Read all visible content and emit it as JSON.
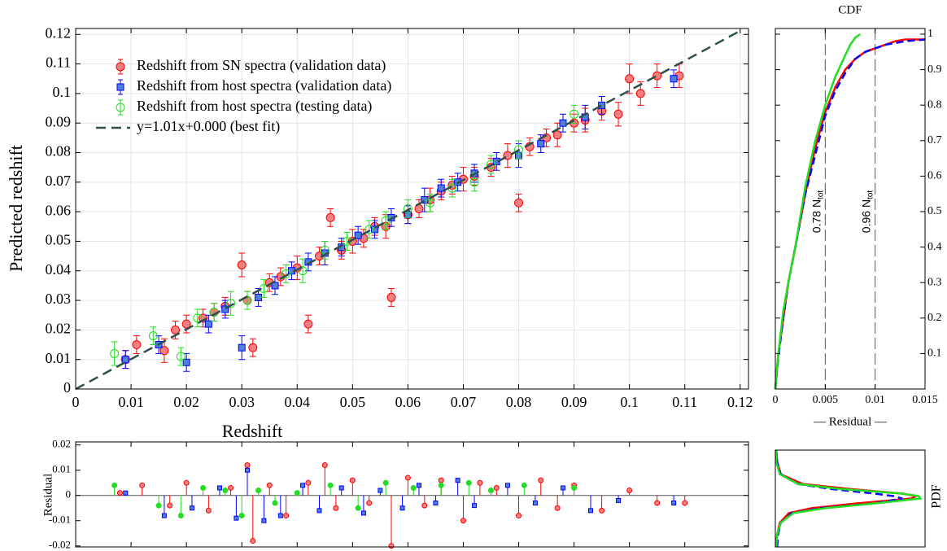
{
  "chart_data": [
    {
      "type": "scatter",
      "xlabel": "Redshift",
      "ylabel": "Predicted redshift",
      "xlim": [
        0,
        0.1215
      ],
      "ylim": [
        0,
        0.122
      ],
      "xticks": [
        0,
        0.01,
        0.02,
        0.03,
        0.04,
        0.05,
        0.06,
        0.07,
        0.08,
        0.09,
        0.1,
        0.11,
        0.12
      ],
      "yticks": [
        0,
        0.01,
        0.02,
        0.03,
        0.04,
        0.05,
        0.06,
        0.07,
        0.08,
        0.09,
        0.1,
        0.11,
        0.12
      ],
      "grid": true,
      "legend": "upper left",
      "series": [
        {
          "name": "Redshift from SN spectra (validation data)",
          "color": "#ff0000",
          "fill": "#f08080",
          "marker": "circle",
          "x": [
            0.009,
            0.011,
            0.016,
            0.018,
            0.02,
            0.023,
            0.025,
            0.027,
            0.03,
            0.031,
            0.032,
            0.035,
            0.037,
            0.04,
            0.042,
            0.044,
            0.046,
            0.048,
            0.05,
            0.052,
            0.054,
            0.056,
            0.057,
            0.06,
            0.062,
            0.064,
            0.066,
            0.068,
            0.07,
            0.072,
            0.075,
            0.078,
            0.08,
            0.082,
            0.085,
            0.087,
            0.09,
            0.092,
            0.095,
            0.098,
            0.1,
            0.102,
            0.105,
            0.109
          ],
          "values": [
            0.01,
            0.015,
            0.013,
            0.02,
            0.022,
            0.024,
            0.026,
            0.028,
            0.042,
            0.03,
            0.014,
            0.036,
            0.038,
            0.041,
            0.022,
            0.045,
            0.058,
            0.047,
            0.05,
            0.051,
            0.055,
            0.055,
            0.031,
            0.059,
            0.061,
            0.064,
            0.067,
            0.069,
            0.071,
            0.072,
            0.075,
            0.079,
            0.063,
            0.082,
            0.085,
            0.086,
            0.09,
            0.091,
            0.094,
            0.093,
            0.105,
            0.1,
            0.106,
            0.106
          ],
          "errors": [
            0.003,
            0.003,
            0.004,
            0.003,
            0.003,
            0.003,
            0.003,
            0.003,
            0.004,
            0.003,
            0.003,
            0.003,
            0.003,
            0.004,
            0.003,
            0.003,
            0.003,
            0.003,
            0.004,
            0.003,
            0.003,
            0.004,
            0.003,
            0.003,
            0.003,
            0.004,
            0.003,
            0.003,
            0.004,
            0.003,
            0.003,
            0.004,
            0.003,
            0.003,
            0.003,
            0.004,
            0.003,
            0.004,
            0.003,
            0.004,
            0.005,
            0.004,
            0.004,
            0.004
          ]
        },
        {
          "name": "Redshift from host spectra (validation data)",
          "color": "#0000ff",
          "fill": "#4f7fd6",
          "marker": "square",
          "x": [
            0.009,
            0.015,
            0.02,
            0.024,
            0.027,
            0.03,
            0.033,
            0.036,
            0.039,
            0.042,
            0.045,
            0.048,
            0.051,
            0.054,
            0.057,
            0.06,
            0.063,
            0.066,
            0.069,
            0.072,
            0.076,
            0.08,
            0.084,
            0.088,
            0.092,
            0.095,
            0.108
          ],
          "values": [
            0.01,
            0.015,
            0.009,
            0.022,
            0.027,
            0.014,
            0.031,
            0.035,
            0.04,
            0.043,
            0.046,
            0.048,
            0.052,
            0.054,
            0.058,
            0.059,
            0.064,
            0.068,
            0.07,
            0.073,
            0.077,
            0.079,
            0.083,
            0.09,
            0.092,
            0.096,
            0.105
          ],
          "errors": [
            0.003,
            0.003,
            0.003,
            0.003,
            0.003,
            0.004,
            0.003,
            0.003,
            0.003,
            0.003,
            0.004,
            0.003,
            0.003,
            0.003,
            0.003,
            0.003,
            0.004,
            0.003,
            0.003,
            0.003,
            0.003,
            0.004,
            0.003,
            0.003,
            0.004,
            0.003,
            0.003
          ]
        },
        {
          "name": "Redshift from host spectra (testing data)",
          "color": "#22dd22",
          "fill": "none",
          "marker": "open-circle",
          "x": [
            0.007,
            0.014,
            0.019,
            0.022,
            0.025,
            0.028,
            0.031,
            0.034,
            0.038,
            0.041,
            0.045,
            0.049,
            0.053,
            0.056,
            0.06,
            0.064,
            0.068,
            0.072,
            0.075,
            0.08,
            0.09
          ],
          "values": [
            0.012,
            0.018,
            0.011,
            0.024,
            0.026,
            0.029,
            0.03,
            0.034,
            0.039,
            0.04,
            0.047,
            0.05,
            0.054,
            0.057,
            0.061,
            0.063,
            0.068,
            0.07,
            0.076,
            0.081,
            0.093
          ],
          "errors": [
            0.004,
            0.003,
            0.003,
            0.003,
            0.003,
            0.004,
            0.003,
            0.003,
            0.003,
            0.004,
            0.003,
            0.003,
            0.003,
            0.003,
            0.003,
            0.003,
            0.003,
            0.003,
            0.003,
            0.003,
            0.003
          ]
        },
        {
          "name": "y=1.01x+0.000 (best fit)",
          "color": "#2f4f4f",
          "style": "dashed",
          "x": [
            0,
            0.12
          ],
          "values": [
            0,
            0.1212
          ]
        }
      ]
    },
    {
      "type": "stem",
      "ylabel": "Residual",
      "xlim": [
        0,
        0.1215
      ],
      "ylim": [
        -0.0204,
        0.0212
      ],
      "xticks": [
        0.01,
        0.02,
        0.03,
        0.04,
        0.05,
        0.06,
        0.07,
        0.08,
        0.09,
        0.1,
        0.11
      ],
      "yticks": [
        -0.02,
        -0.01,
        0,
        0.01,
        0.02
      ],
      "series": [
        {
          "color": "#ff0000",
          "fill": "#f08080",
          "marker": "circle",
          "x": [
            0.008,
            0.012,
            0.017,
            0.02,
            0.024,
            0.028,
            0.031,
            0.032,
            0.035,
            0.038,
            0.042,
            0.045,
            0.047,
            0.05,
            0.053,
            0.057,
            0.06,
            0.063,
            0.066,
            0.07,
            0.073,
            0.076,
            0.08,
            0.084,
            0.087,
            0.09,
            0.095,
            0.1,
            0.105,
            0.11
          ],
          "values": [
            0.001,
            0.004,
            -0.004,
            0.005,
            -0.006,
            0.003,
            0.012,
            -0.018,
            0.004,
            -0.008,
            0.005,
            0.012,
            -0.005,
            0.006,
            -0.003,
            -0.02,
            0.007,
            -0.004,
            0.006,
            -0.01,
            0.005,
            0.003,
            -0.008,
            0.006,
            -0.005,
            0.004,
            -0.006,
            0.002,
            -0.003,
            -0.003
          ]
        },
        {
          "color": "#0000ff",
          "fill": "#4f7fd6",
          "marker": "square",
          "x": [
            0.009,
            0.016,
            0.021,
            0.026,
            0.029,
            0.031,
            0.034,
            0.037,
            0.041,
            0.044,
            0.048,
            0.052,
            0.055,
            0.059,
            0.062,
            0.065,
            0.069,
            0.072,
            0.078,
            0.083,
            0.088,
            0.093,
            0.098,
            0.108
          ],
          "values": [
            0.001,
            -0.008,
            -0.005,
            0.003,
            -0.009,
            0.01,
            -0.01,
            -0.008,
            0.004,
            -0.006,
            0.003,
            -0.007,
            0.002,
            -0.005,
            0.004,
            -0.003,
            0.006,
            -0.004,
            0.004,
            -0.003,
            0.003,
            -0.006,
            -0.002,
            -0.003
          ]
        },
        {
          "color": "#22dd22",
          "fill": "#22dd22",
          "marker": "circle",
          "x": [
            0.007,
            0.015,
            0.019,
            0.023,
            0.027,
            0.03,
            0.033,
            0.036,
            0.04,
            0.046,
            0.051,
            0.056,
            0.061,
            0.066,
            0.071,
            0.075,
            0.081,
            0.09
          ],
          "values": [
            0.004,
            -0.004,
            -0.008,
            0.003,
            0.002,
            -0.008,
            0.002,
            -0.003,
            0.001,
            0.004,
            -0.005,
            0.005,
            0.003,
            0.004,
            0.005,
            0.002,
            0.004,
            0.003
          ]
        }
      ]
    },
    {
      "type": "line",
      "title": "CDF",
      "xlabel": "— Residual —",
      "xlim": [
        0,
        0.015
      ],
      "ylim": [
        0,
        1.016
      ],
      "xticks": [
        0,
        0.005,
        0.01,
        0.015
      ],
      "yticks": [
        0.1,
        0.2,
        0.3,
        0.4,
        0.5,
        0.6,
        0.7,
        0.8,
        0.9,
        1
      ],
      "annotations": [
        {
          "x": 0.005,
          "text": "0.78 N",
          "subscript": "tot"
        },
        {
          "x": 0.01,
          "text": "0.96 N",
          "subscript": "tot"
        }
      ],
      "series": [
        {
          "color": "#ff0000",
          "style": "solid",
          "x": [
            0,
            0.0003,
            0.0008,
            0.0013,
            0.002,
            0.003,
            0.004,
            0.005,
            0.006,
            0.007,
            0.008,
            0.009,
            0.01,
            0.011,
            0.012,
            0.013,
            0.015
          ],
          "values": [
            0,
            0.1,
            0.2,
            0.3,
            0.4,
            0.55,
            0.68,
            0.78,
            0.85,
            0.9,
            0.93,
            0.95,
            0.96,
            0.97,
            0.98,
            0.985,
            0.985
          ]
        },
        {
          "color": "#0000ff",
          "style": "dashed",
          "x": [
            0,
            0.0003,
            0.0008,
            0.0013,
            0.002,
            0.003,
            0.004,
            0.005,
            0.006,
            0.007,
            0.008,
            0.009,
            0.01,
            0.011,
            0.012,
            0.013,
            0.015
          ],
          "values": [
            0,
            0.09,
            0.2,
            0.3,
            0.4,
            0.55,
            0.66,
            0.77,
            0.84,
            0.89,
            0.93,
            0.95,
            0.96,
            0.97,
            0.975,
            0.98,
            0.985
          ]
        },
        {
          "color": "#22dd22",
          "style": "solid",
          "x": [
            0,
            0.0003,
            0.0008,
            0.0013,
            0.002,
            0.003,
            0.004,
            0.005,
            0.006,
            0.007,
            0.0075,
            0.008,
            0.0085
          ],
          "values": [
            0,
            0.1,
            0.22,
            0.3,
            0.4,
            0.57,
            0.7,
            0.8,
            0.88,
            0.94,
            0.97,
            0.99,
            1
          ]
        }
      ]
    },
    {
      "type": "line",
      "orientation": "horizontal",
      "ylabel": "PDF",
      "xlim": [
        0,
        165
      ],
      "ylim": [
        -0.02,
        0.02
      ],
      "y": [
        -0.02,
        -0.015,
        -0.01,
        -0.006,
        -0.004,
        -0.002,
        0,
        0.001,
        0.002,
        0.004,
        0.006,
        0.01,
        0.015,
        0.02
      ],
      "series": [
        {
          "color": "#ff0000",
          "style": "solid",
          "values": [
            1,
            2,
            5,
            15,
            40,
            90,
            150,
            155,
            140,
            80,
            30,
            6,
            2,
            1
          ]
        },
        {
          "color": "#0000ff",
          "style": "dashed",
          "values": [
            2,
            3,
            6,
            18,
            50,
            110,
            140,
            130,
            110,
            60,
            25,
            6,
            2,
            1
          ]
        },
        {
          "color": "#22dd22",
          "style": "solid",
          "values": [
            1,
            2,
            6,
            20,
            55,
            110,
            160,
            158,
            140,
            70,
            25,
            5,
            1,
            1
          ]
        }
      ]
    }
  ]
}
